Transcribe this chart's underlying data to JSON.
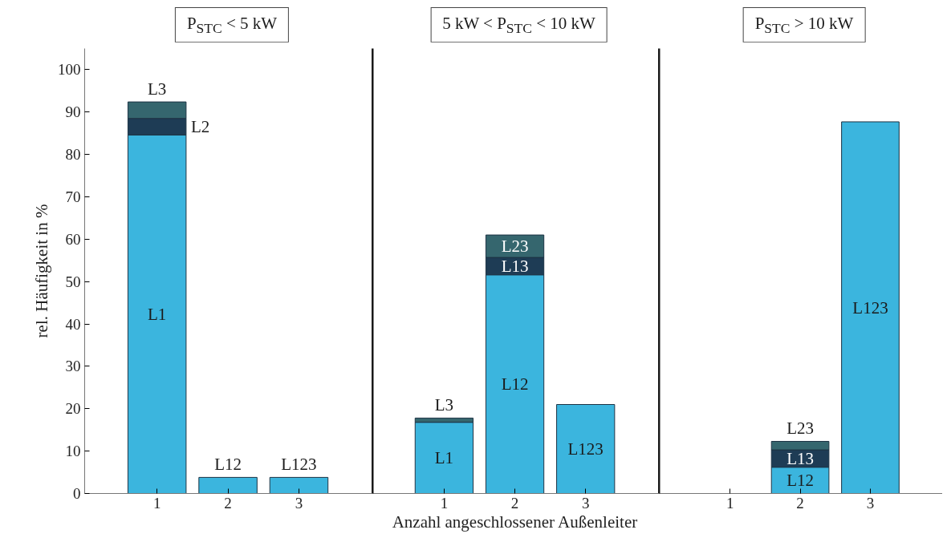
{
  "chart_data": [
    {
      "type": "bar",
      "stacked": true,
      "title": "P$_{STC}$ < 5 kW",
      "ylabel": "rel. Häufigkeit in %",
      "categories": [
        "1",
        "2",
        "3"
      ],
      "ylim": [
        0,
        105
      ],
      "yticks": [
        0,
        10,
        20,
        30,
        40,
        50,
        60,
        70,
        80,
        90,
        100
      ],
      "grid": false,
      "series": [
        {
          "name": "L1",
          "color": "#3bb5de",
          "values": [
            84.6,
            null,
            null
          ]
        },
        {
          "name": "L12",
          "color": "#3bb5de",
          "values": [
            null,
            3.8,
            null
          ]
        },
        {
          "name": "L123",
          "color": "#3bb5de",
          "values": [
            null,
            null,
            3.8
          ]
        },
        {
          "name": "L2",
          "color": "#1e3c55",
          "values": [
            3.9,
            null,
            null
          ]
        },
        {
          "name": "L3",
          "color": "#35666e",
          "values": [
            3.9,
            null,
            null
          ]
        }
      ]
    },
    {
      "type": "bar",
      "stacked": true,
      "title": "5 kW < P$_{STC}$ < 10 kW",
      "xlabel": "Anzahl angeschlossener Außenleiter",
      "categories": [
        "1",
        "2",
        "3"
      ],
      "ylim": [
        0,
        105
      ],
      "tick_labels": "x",
      "grid": false,
      "series": [
        {
          "name": "L1",
          "color": "#3bb5de",
          "values": [
            16.8,
            null,
            null
          ]
        },
        {
          "name": "L12",
          "color": "#3bb5de",
          "values": [
            null,
            51.6,
            null
          ]
        },
        {
          "name": "L123",
          "color": "#3bb5de",
          "values": [
            null,
            null,
            21
          ]
        },
        {
          "name": "L13",
          "color": "#1e3c55",
          "values": [
            null,
            4.1,
            null
          ]
        },
        {
          "name": "L3",
          "color": "#35666e",
          "values": [
            1.0,
            null,
            null
          ]
        },
        {
          "name": "L23",
          "color": "#35666e",
          "values": [
            null,
            5.3,
            null
          ]
        }
      ]
    },
    {
      "type": "bar",
      "stacked": true,
      "title": "P$_{STC}$ > 10 kW",
      "categories": [
        "1",
        "2",
        "3"
      ],
      "ylim": [
        0,
        105
      ],
      "tick_labels": "x",
      "grid": false,
      "series": [
        {
          "name": "L12",
          "color": "#3bb5de",
          "values": [
            null,
            6.2,
            null
          ]
        },
        {
          "name": "L123",
          "color": "#3bb5de",
          "values": [
            null,
            null,
            87.7
          ]
        },
        {
          "name": "L13",
          "color": "#1e3c55",
          "values": [
            null,
            4.1,
            null
          ]
        },
        {
          "name": "L23",
          "color": "#35666e",
          "values": [
            null,
            2.0,
            null
          ]
        }
      ]
    }
  ]
}
